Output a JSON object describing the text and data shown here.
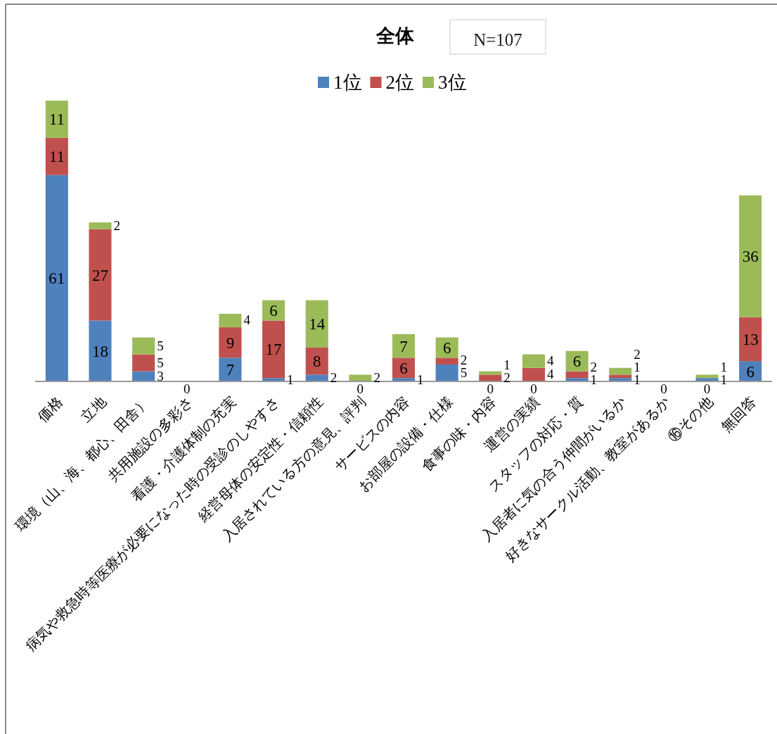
{
  "chart_data": {
    "type": "bar",
    "stacked": true,
    "legend": "top",
    "title": "全体",
    "annotations": [
      "N=107"
    ],
    "categories": [
      "価格",
      "立地",
      "環境（山、海、都心、田舎）",
      "共用施設の多彩さ",
      "看護・介護体制の充実",
      "病気や救急時等医療が必要になった時の受診のしやすさ",
      "経営母体の安定性・信頼性",
      "入居されている方の意見、評判",
      "サービスの内容",
      "お部屋の設備・仕様",
      "食事の味・内容",
      "運営の実績",
      "スタッフの対応・質",
      "入居者に気の合う仲間がいるか",
      "好きなサークル活動、教室があるか",
      "⑯その他",
      "無回答"
    ],
    "series": [
      {
        "name": "1位",
        "color": "#4f81bd",
        "values": [
          61,
          18,
          3,
          0,
          7,
          1,
          2,
          0,
          1,
          5,
          0,
          0,
          1,
          1,
          0,
          1,
          6
        ],
        "value_labels": [
          "61",
          "18",
          "3",
          "0",
          "7",
          "1",
          "2",
          "0",
          "1",
          "5",
          "0",
          "0",
          "1",
          "1",
          "0",
          "1",
          "6"
        ]
      },
      {
        "name": "2位",
        "color": "#c0504d",
        "values": [
          11,
          27,
          5,
          0,
          9,
          17,
          8,
          0,
          6,
          2,
          2,
          4,
          2,
          1,
          0,
          0,
          13
        ],
        "value_labels": [
          "11",
          "27",
          "5",
          null,
          "9",
          "17",
          "8",
          null,
          "6",
          "2",
          "2",
          "4",
          "2",
          "1",
          null,
          "0",
          "13"
        ]
      },
      {
        "name": "3位",
        "color": "#9bbb59",
        "values": [
          11,
          2,
          5,
          0,
          4,
          6,
          14,
          2,
          7,
          6,
          1,
          4,
          6,
          2,
          0,
          1,
          36
        ],
        "value_labels": [
          "11",
          "2",
          "5",
          null,
          "4",
          "6",
          "14",
          "2",
          "7",
          "6",
          "1",
          "4",
          "6",
          "2",
          null,
          "1",
          "36"
        ]
      }
    ]
  }
}
